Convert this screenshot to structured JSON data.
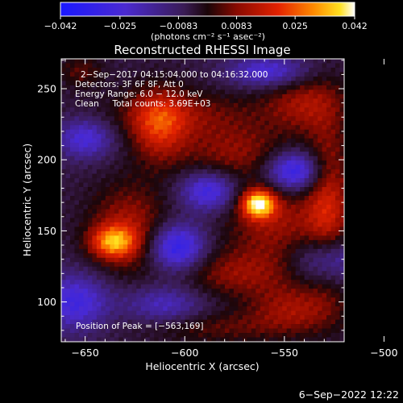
{
  "chart_data": {
    "type": "heatmap",
    "title": "Reconstructed RHESSI Image",
    "xlabel": "Heliocentric X (arcsec)",
    "ylabel": "Heliocentric Y (arcsec)",
    "xlim": [
      -662,
      -520
    ],
    "ylim": [
      72,
      271
    ],
    "x_ticks": [
      -650,
      -600,
      -550,
      -500
    ],
    "x_tick_labels": [
      "−650",
      "−600",
      "−550",
      "−500"
    ],
    "y_ticks": [
      100,
      150,
      200,
      250
    ],
    "y_tick_labels": [
      "100",
      "150",
      "200",
      "250"
    ],
    "colorbar": {
      "min": -0.042,
      "max": 0.042,
      "ticks": [
        -0.042,
        -0.025,
        -0.0083,
        0.0083,
        0.025,
        0.042
      ],
      "tick_labels": [
        "−0.042",
        "−0.025",
        "−0.0083",
        "0.0083",
        "0.025",
        "0.042"
      ],
      "unit_label": "(photons cm⁻² s⁻¹ asec⁻²)"
    },
    "info_lines": [
      "2−Sep−2017 04:15:04.000 to 04:16:32.000",
      "Detectors: 3F 6F 8F, Att 0",
      "Energy Range: 6.0 − 12.0 keV",
      "Clean     Total counts: 3.69E+03"
    ],
    "peak_label": "Position of Peak = [−563,169]",
    "peak": {
      "x": -563,
      "y": 169,
      "value": 0.042
    },
    "sources": [
      {
        "x": -563,
        "y": 169,
        "sx": 6,
        "sy": 7,
        "amp": 0.042
      },
      {
        "x": -554,
        "y": 155,
        "sx": 18,
        "sy": 20,
        "amp": 0.016
      },
      {
        "x": -636,
        "y": 142,
        "sx": 8,
        "sy": 8,
        "amp": 0.03
      },
      {
        "x": -628,
        "y": 152,
        "sx": 14,
        "sy": 22,
        "amp": 0.018
      },
      {
        "x": -613,
        "y": 224,
        "sx": 10,
        "sy": 18,
        "amp": 0.022
      },
      {
        "x": -600,
        "y": 232,
        "sx": 28,
        "sy": 12,
        "amp": 0.012
      },
      {
        "x": -575,
        "y": 205,
        "sx": 20,
        "sy": 14,
        "amp": 0.014
      },
      {
        "x": -528,
        "y": 170,
        "sx": 8,
        "sy": 40,
        "amp": 0.02
      },
      {
        "x": -540,
        "y": 240,
        "sx": 14,
        "sy": 14,
        "amp": 0.016
      },
      {
        "x": -575,
        "y": 120,
        "sx": 22,
        "sy": 12,
        "amp": 0.014
      },
      {
        "x": -545,
        "y": 95,
        "sx": 16,
        "sy": 12,
        "amp": 0.016
      },
      {
        "x": -585,
        "y": 82,
        "sx": 26,
        "sy": 8,
        "amp": 0.01
      },
      {
        "x": -652,
        "y": 262,
        "sx": 8,
        "sy": 8,
        "amp": 0.01
      },
      {
        "x": -650,
        "y": 215,
        "sx": 10,
        "sy": 10,
        "amp": -0.02
      },
      {
        "x": -655,
        "y": 100,
        "sx": 12,
        "sy": 14,
        "amp": -0.022
      },
      {
        "x": -604,
        "y": 138,
        "sx": 10,
        "sy": 12,
        "amp": -0.03
      },
      {
        "x": -588,
        "y": 178,
        "sx": 10,
        "sy": 10,
        "amp": -0.024
      },
      {
        "x": -528,
        "y": 130,
        "sx": 12,
        "sy": 12,
        "amp": -0.022
      },
      {
        "x": -545,
        "y": 192,
        "sx": 10,
        "sy": 10,
        "amp": -0.03
      },
      {
        "x": -558,
        "y": 262,
        "sx": 14,
        "sy": 8,
        "amp": -0.02
      },
      {
        "x": -610,
        "y": 98,
        "sx": 14,
        "sy": 10,
        "amp": -0.016
      }
    ]
  },
  "footer": {
    "timestamp": "6−Sep−2022 12:22"
  }
}
